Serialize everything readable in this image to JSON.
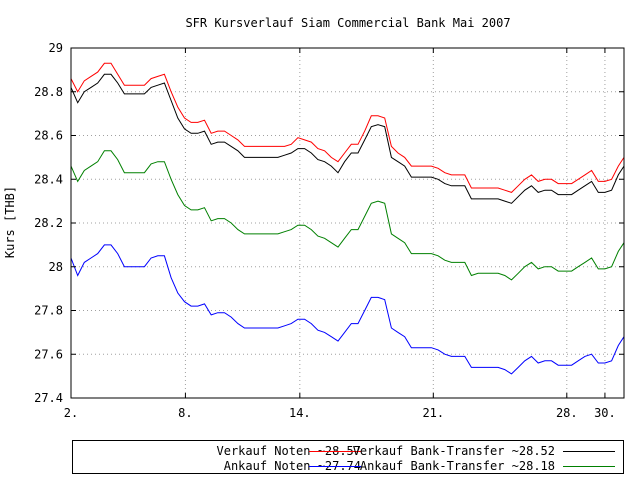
{
  "chart_data": {
    "type": "line",
    "title": "SFR Kursverlauf Siam Commercial Bank Mai 2007",
    "xlabel": "",
    "ylabel": "Kurs [THB]",
    "xlim": [
      2,
      31
    ],
    "ylim": [
      27.4,
      29.0
    ],
    "xticks": [
      2,
      8,
      14,
      21,
      28,
      30
    ],
    "xtick_labels": [
      "2.",
      "8.",
      "14.",
      "21.",
      "28.",
      "30."
    ],
    "yticks": [
      27.4,
      27.6,
      27.8,
      28.0,
      28.2,
      28.4,
      28.6,
      28.8,
      29.0
    ],
    "ytick_labels": [
      "27.4",
      "27.6",
      "27.8",
      "28",
      "28.2",
      "28.4",
      "28.6",
      "28.8",
      "29"
    ],
    "grid": true,
    "legend_position": "bottom",
    "x": [
      2.0,
      2.35,
      2.7,
      3.05,
      3.4,
      3.75,
      4.1,
      4.45,
      4.8,
      5.15,
      5.5,
      5.85,
      6.2,
      6.55,
      6.9,
      7.25,
      7.6,
      7.95,
      8.3,
      8.65,
      9.0,
      9.35,
      9.7,
      10.05,
      10.4,
      10.75,
      11.1,
      11.45,
      11.8,
      12.15,
      12.5,
      12.85,
      13.2,
      13.55,
      13.9,
      14.25,
      14.6,
      14.95,
      15.3,
      15.65,
      16.0,
      16.35,
      16.7,
      17.05,
      17.4,
      17.75,
      18.1,
      18.45,
      18.8,
      19.15,
      19.5,
      19.85,
      20.2,
      20.55,
      20.9,
      21.25,
      21.6,
      21.95,
      22.3,
      22.65,
      23.0,
      23.35,
      23.7,
      24.05,
      24.4,
      24.75,
      25.1,
      25.45,
      25.8,
      26.15,
      26.5,
      26.85,
      27.2,
      27.55,
      27.9,
      28.25,
      28.6,
      28.95,
      29.3,
      29.65,
      30.0,
      30.35,
      30.7,
      31.0
    ],
    "series": [
      {
        "name": "Verkauf Noten ~28.57",
        "color": "#ff0000",
        "values": [
          28.86,
          28.8,
          28.85,
          28.87,
          28.89,
          28.93,
          28.93,
          28.88,
          28.83,
          28.83,
          28.83,
          28.83,
          28.86,
          28.87,
          28.88,
          28.8,
          28.73,
          28.68,
          28.66,
          28.66,
          28.67,
          28.61,
          28.62,
          28.62,
          28.6,
          28.58,
          28.55,
          28.55,
          28.55,
          28.55,
          28.55,
          28.55,
          28.55,
          28.56,
          28.59,
          28.58,
          28.57,
          28.54,
          28.53,
          28.5,
          28.48,
          28.52,
          28.56,
          28.56,
          28.62,
          28.69,
          28.69,
          28.68,
          28.55,
          28.52,
          28.5,
          28.46,
          28.46,
          28.46,
          28.46,
          28.45,
          28.43,
          28.42,
          28.42,
          28.42,
          28.36,
          28.36,
          28.36,
          28.36,
          28.36,
          28.35,
          28.34,
          28.37,
          28.4,
          28.42,
          28.39,
          28.4,
          28.4,
          28.38,
          28.38,
          28.38,
          28.4,
          28.42,
          28.44,
          28.39,
          28.39,
          28.4,
          28.46,
          28.5
        ]
      },
      {
        "name": "Verkauf Bank-Transfer ~28.52",
        "color": "#000000",
        "values": [
          28.82,
          28.75,
          28.8,
          28.82,
          28.84,
          28.88,
          28.88,
          28.84,
          28.79,
          28.79,
          28.79,
          28.79,
          28.82,
          28.83,
          28.84,
          28.76,
          28.68,
          28.63,
          28.61,
          28.61,
          28.62,
          28.56,
          28.57,
          28.57,
          28.55,
          28.53,
          28.5,
          28.5,
          28.5,
          28.5,
          28.5,
          28.5,
          28.51,
          28.52,
          28.54,
          28.54,
          28.52,
          28.49,
          28.48,
          28.46,
          28.43,
          28.48,
          28.52,
          28.52,
          28.58,
          28.64,
          28.65,
          28.64,
          28.5,
          28.48,
          28.46,
          28.41,
          28.41,
          28.41,
          28.41,
          28.4,
          28.38,
          28.37,
          28.37,
          28.37,
          28.31,
          28.31,
          28.31,
          28.31,
          28.31,
          28.3,
          28.29,
          28.32,
          28.35,
          28.37,
          28.34,
          28.35,
          28.35,
          28.33,
          28.33,
          28.33,
          28.35,
          28.37,
          28.39,
          28.34,
          28.34,
          28.35,
          28.42,
          28.46
        ]
      },
      {
        "name": "Ankauf Bank-Transfer ~28.18",
        "color": "#008000",
        "values": [
          28.46,
          28.39,
          28.44,
          28.46,
          28.48,
          28.53,
          28.53,
          28.49,
          28.43,
          28.43,
          28.43,
          28.43,
          28.47,
          28.48,
          28.48,
          28.4,
          28.33,
          28.28,
          28.26,
          28.26,
          28.27,
          28.21,
          28.22,
          28.22,
          28.2,
          28.17,
          28.15,
          28.15,
          28.15,
          28.15,
          28.15,
          28.15,
          28.16,
          28.17,
          28.19,
          28.19,
          28.17,
          28.14,
          28.13,
          28.11,
          28.09,
          28.13,
          28.17,
          28.17,
          28.23,
          28.29,
          28.3,
          28.29,
          28.15,
          28.13,
          28.11,
          28.06,
          28.06,
          28.06,
          28.06,
          28.05,
          28.03,
          28.02,
          28.02,
          28.02,
          27.96,
          27.97,
          27.97,
          27.97,
          27.97,
          27.96,
          27.94,
          27.97,
          28.0,
          28.02,
          27.99,
          28.0,
          28.0,
          27.98,
          27.98,
          27.98,
          28.0,
          28.02,
          28.04,
          27.99,
          27.99,
          28.0,
          28.07,
          28.11
        ]
      },
      {
        "name": "Ankauf Noten ~27.74",
        "color": "#0000ff",
        "values": [
          28.04,
          27.96,
          28.02,
          28.04,
          28.06,
          28.1,
          28.1,
          28.06,
          28.0,
          28.0,
          28.0,
          28.0,
          28.04,
          28.05,
          28.05,
          27.95,
          27.88,
          27.84,
          27.82,
          27.82,
          27.83,
          27.78,
          27.79,
          27.79,
          27.77,
          27.74,
          27.72,
          27.72,
          27.72,
          27.72,
          27.72,
          27.72,
          27.73,
          27.74,
          27.76,
          27.76,
          27.74,
          27.71,
          27.7,
          27.68,
          27.66,
          27.7,
          27.74,
          27.74,
          27.8,
          27.86,
          27.86,
          27.85,
          27.72,
          27.7,
          27.68,
          27.63,
          27.63,
          27.63,
          27.63,
          27.62,
          27.6,
          27.59,
          27.59,
          27.59,
          27.54,
          27.54,
          27.54,
          27.54,
          27.54,
          27.53,
          27.51,
          27.54,
          27.57,
          27.59,
          27.56,
          27.57,
          27.57,
          27.55,
          27.55,
          27.55,
          27.57,
          27.59,
          27.6,
          27.56,
          27.56,
          27.57,
          27.64,
          27.68
        ]
      }
    ]
  },
  "legend": {
    "verkauf_noten": "Verkauf Noten ~28.57",
    "verkauf_bank": "Verkauf Bank-Transfer ~28.52",
    "ankauf_noten": "Ankauf Noten ~27.74",
    "ankauf_bank": "Ankauf Bank-Transfer ~28.18"
  }
}
